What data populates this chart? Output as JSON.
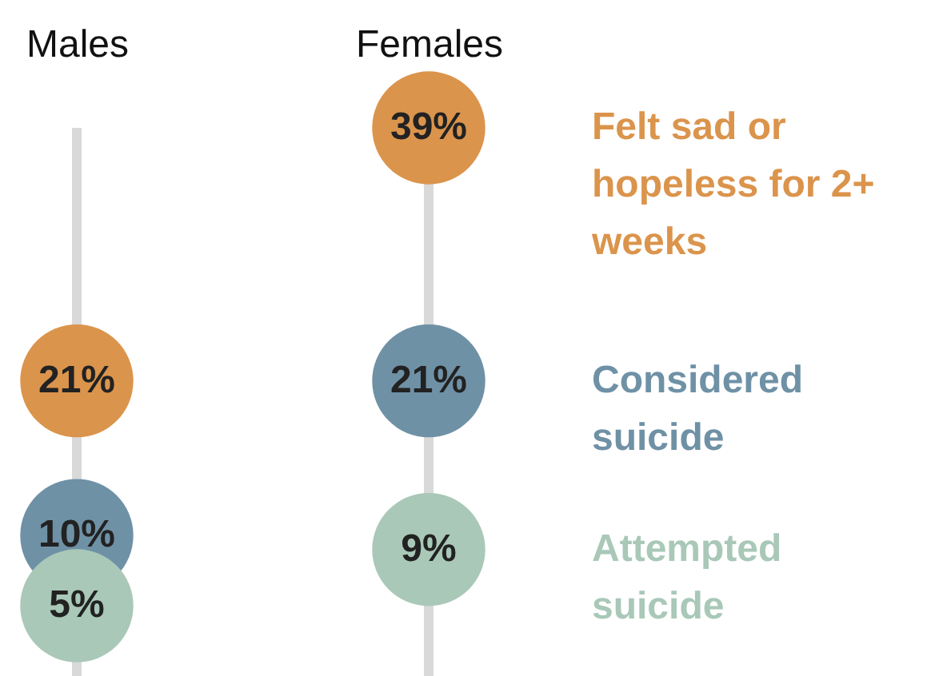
{
  "chart_data": {
    "type": "scatter",
    "categories": [
      "Males",
      "Females"
    ],
    "tick_labels": "x",
    "marker": "circle",
    "ref_lines": [
      {
        "axis": "x",
        "value": "Males",
        "color": "#d9d9d9"
      },
      {
        "axis": "x",
        "value": "Females",
        "color": "#d9d9d9"
      }
    ],
    "series": [
      {
        "name": "Felt sad or hopeless for 2+ weeks",
        "color": "#db944c",
        "values": [
          21,
          39
        ],
        "value_labels": [
          "21%",
          "39%"
        ]
      },
      {
        "name": "Considered suicide",
        "color": "#6f91a6",
        "values": [
          10,
          21
        ],
        "value_labels": [
          "10%",
          "21%"
        ]
      },
      {
        "name": "Attempted suicide",
        "color": "#a9c8b8",
        "values": [
          5,
          9
        ],
        "value_labels": [
          "5%",
          "9%"
        ]
      }
    ]
  }
}
